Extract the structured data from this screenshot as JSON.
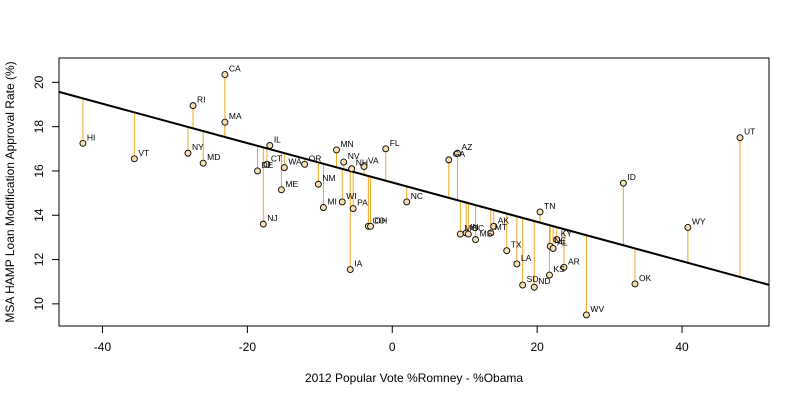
{
  "chart_data": {
    "type": "scatter",
    "title": "",
    "xlabel": "2012 Popular Vote %Romney - %Obama",
    "ylabel": "MSA HAMP Loan Modification Approval Rate (%)",
    "xlim": [
      -46,
      52
    ],
    "ylim": [
      9,
      21.1
    ],
    "xticks": [
      -40,
      -20,
      0,
      20,
      40
    ],
    "yticks": [
      10,
      12,
      14,
      16,
      18,
      20
    ],
    "grid": false,
    "regression_line": {
      "intercept": 15.48,
      "slope": -0.0889
    },
    "colors": {
      "points_fill": "#f5deb3",
      "residual": "#f0a81f",
      "line": "#000000"
    },
    "points": [
      {
        "label": "HI",
        "x": -42.7,
        "y": 17.25
      },
      {
        "label": "VT",
        "x": -35.6,
        "y": 16.55
      },
      {
        "label": "NY",
        "x": -28.2,
        "y": 16.8
      },
      {
        "label": "RI",
        "x": -27.5,
        "y": 18.95
      },
      {
        "label": "MD",
        "x": -26.1,
        "y": 16.35
      },
      {
        "label": "CA",
        "x": -23.1,
        "y": 20.35
      },
      {
        "label": "MA",
        "x": -23.1,
        "y": 18.2
      },
      {
        "label": "DE",
        "x": -18.6,
        "y": 16.0
      },
      {
        "label": "CT",
        "x": -17.3,
        "y": 16.3
      },
      {
        "label": "IL",
        "x": -16.9,
        "y": 17.15
      },
      {
        "label": "WA",
        "x": -14.9,
        "y": 16.15
      },
      {
        "label": "ME",
        "x": -15.3,
        "y": 15.15
      },
      {
        "label": "NJ",
        "x": -17.8,
        "y": 13.6
      },
      {
        "label": "OR",
        "x": -12.1,
        "y": 16.3
      },
      {
        "label": "NM",
        "x": -10.2,
        "y": 15.4
      },
      {
        "label": "MI",
        "x": -9.5,
        "y": 14.35
      },
      {
        "label": "WI",
        "x": -6.9,
        "y": 14.6
      },
      {
        "label": "PA",
        "x": -5.4,
        "y": 14.3
      },
      {
        "label": "MN",
        "x": -7.7,
        "y": 16.95
      },
      {
        "label": "NV",
        "x": -6.7,
        "y": 16.4
      },
      {
        "label": "NH",
        "x": -5.6,
        "y": 16.1
      },
      {
        "label": "IA",
        "x": -5.8,
        "y": 11.55
      },
      {
        "label": "VA",
        "x": -3.9,
        "y": 16.2
      },
      {
        "label": "CO",
        "x": -3.3,
        "y": 13.5
      },
      {
        "label": "OH",
        "x": -3.0,
        "y": 13.5
      },
      {
        "label": "FL",
        "x": -0.9,
        "y": 17.0
      },
      {
        "label": "NC",
        "x": 2.0,
        "y": 14.6
      },
      {
        "label": "GA",
        "x": 7.8,
        "y": 16.5
      },
      {
        "label": "AZ",
        "x": 9.0,
        "y": 16.8
      },
      {
        "label": "MO",
        "x": 9.4,
        "y": 13.15
      },
      {
        "label": "IN",
        "x": 10.2,
        "y": 13.2
      },
      {
        "label": "SC",
        "x": 10.5,
        "y": 13.15
      },
      {
        "label": "MS",
        "x": 11.5,
        "y": 12.9
      },
      {
        "label": "MT",
        "x": 13.6,
        "y": 13.2
      },
      {
        "label": "AK",
        "x": 14.0,
        "y": 13.5
      },
      {
        "label": "TX",
        "x": 15.8,
        "y": 12.4
      },
      {
        "label": "LA",
        "x": 17.2,
        "y": 11.8
      },
      {
        "label": "SD",
        "x": 18.0,
        "y": 10.85
      },
      {
        "label": "ND",
        "x": 19.6,
        "y": 10.75
      },
      {
        "label": "TN",
        "x": 20.4,
        "y": 14.15
      },
      {
        "label": "NE",
        "x": 21.8,
        "y": 12.6
      },
      {
        "label": "AL",
        "x": 22.2,
        "y": 12.5
      },
      {
        "label": "KY",
        "x": 22.7,
        "y": 12.9
      },
      {
        "label": "KS",
        "x": 21.7,
        "y": 11.3
      },
      {
        "label": "AR",
        "x": 23.7,
        "y": 11.65
      },
      {
        "label": "WV",
        "x": 26.8,
        "y": 9.5
      },
      {
        "label": "ID",
        "x": 31.9,
        "y": 15.45
      },
      {
        "label": "OK",
        "x": 33.5,
        "y": 10.9
      },
      {
        "label": "WY",
        "x": 40.8,
        "y": 13.45
      },
      {
        "label": "UT",
        "x": 48.0,
        "y": 17.5
      }
    ]
  }
}
